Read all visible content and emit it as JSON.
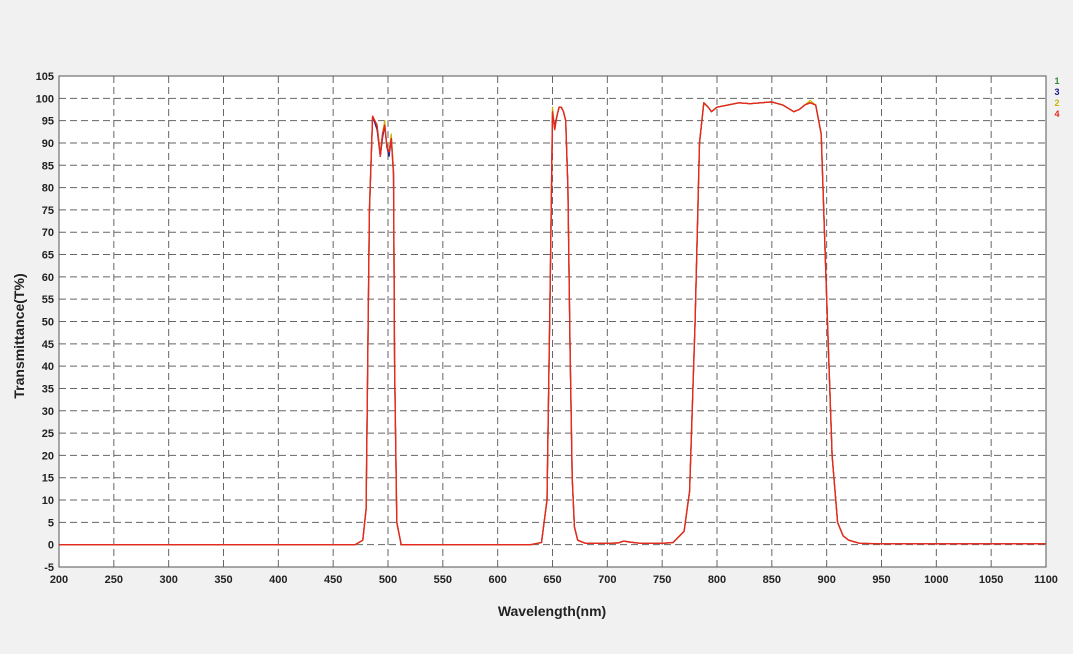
{
  "chart_data": {
    "type": "line",
    "title": "",
    "xlabel": "Wavelength(nm)",
    "ylabel": "Transmittance(T%)",
    "xlim": [
      200,
      1100
    ],
    "ylim": [
      -5,
      105
    ],
    "xticks": [
      200,
      250,
      300,
      350,
      400,
      450,
      500,
      550,
      600,
      650,
      700,
      750,
      800,
      850,
      900,
      950,
      1000,
      1050,
      1100
    ],
    "yticks": [
      -5,
      0,
      5,
      10,
      15,
      20,
      25,
      30,
      35,
      40,
      45,
      50,
      55,
      60,
      65,
      70,
      75,
      80,
      85,
      90,
      95,
      100,
      105
    ],
    "grid": "dashed",
    "legend_position": "top-right",
    "series": [
      {
        "name": "1",
        "color": "#2e8b2e",
        "x": [
          200,
          470,
          477,
          480,
          483,
          486,
          490,
          493,
          495,
          497,
          499,
          501,
          503,
          505,
          506,
          508,
          512,
          520,
          630,
          640,
          645,
          648,
          650,
          652,
          654,
          656,
          658,
          660,
          662,
          664,
          666,
          668,
          670,
          673,
          680,
          690,
          700,
          710,
          715,
          720,
          730,
          750,
          760,
          770,
          775,
          780,
          784,
          788,
          792,
          795,
          800,
          810,
          820,
          830,
          840,
          850,
          860,
          870,
          875,
          880,
          885,
          890,
          895,
          900,
          905,
          910,
          915,
          920,
          930,
          950,
          1000,
          1100
        ],
        "y": [
          0,
          0,
          1,
          8,
          75,
          96,
          94,
          87,
          92,
          94,
          89,
          88,
          91,
          83,
          40,
          5,
          0,
          0,
          0,
          0.5,
          10,
          60,
          97,
          93,
          96,
          98,
          98,
          97,
          95,
          80,
          45,
          15,
          4,
          1,
          0.3,
          0.3,
          0.3,
          0.4,
          0.8,
          0.6,
          0.3,
          0.3,
          0.5,
          3,
          12,
          50,
          90,
          99,
          98,
          97,
          98,
          98.5,
          99,
          98.8,
          99,
          99.2,
          98.5,
          97,
          97.5,
          98.5,
          99,
          98.5,
          92,
          55,
          20,
          5,
          2,
          1,
          0.3,
          0.2,
          0.2,
          0.2
        ]
      },
      {
        "name": "3",
        "color": "#1a1a8c",
        "x": [
          200,
          470,
          477,
          480,
          483,
          486,
          490,
          493,
          495,
          497,
          499,
          501,
          503,
          505,
          506,
          508,
          512,
          520,
          630,
          640,
          645,
          648,
          650,
          652,
          654,
          656,
          658,
          660,
          662,
          664,
          666,
          668,
          670,
          673,
          680,
          690,
          700,
          710,
          715,
          720,
          730,
          750,
          760,
          770,
          775,
          780,
          784,
          788,
          792,
          795,
          800,
          810,
          820,
          830,
          840,
          850,
          860,
          870,
          875,
          880,
          885,
          890,
          895,
          900,
          905,
          910,
          915,
          920,
          930,
          950,
          1000,
          1100
        ],
        "y": [
          0,
          0,
          1,
          8,
          74,
          96,
          93,
          87,
          91,
          94,
          89,
          87,
          91,
          84,
          40,
          5,
          0,
          0,
          0,
          0.5,
          10,
          59,
          96,
          94,
          96,
          98,
          98,
          97,
          95,
          80,
          45,
          15,
          4,
          1,
          0.3,
          0.3,
          0.3,
          0.4,
          0.8,
          0.6,
          0.3,
          0.3,
          0.5,
          3,
          12,
          50,
          90,
          99,
          98,
          97,
          98,
          98.5,
          99,
          98.8,
          99,
          99.2,
          98.5,
          97,
          97.5,
          98.5,
          99,
          98.5,
          92,
          55,
          20,
          5,
          2,
          1,
          0.3,
          0.2,
          0.2,
          0.2
        ]
      },
      {
        "name": "2",
        "color": "#c8b400",
        "x": [
          200,
          470,
          477,
          480,
          483,
          486,
          490,
          493,
          495,
          497,
          499,
          501,
          503,
          505,
          506,
          508,
          512,
          520,
          630,
          640,
          645,
          648,
          650,
          652,
          654,
          656,
          658,
          660,
          662,
          664,
          666,
          668,
          670,
          673,
          680,
          690,
          700,
          710,
          715,
          720,
          730,
          750,
          760,
          770,
          775,
          780,
          784,
          788,
          792,
          795,
          800,
          810,
          820,
          830,
          840,
          850,
          860,
          870,
          875,
          880,
          885,
          890,
          895,
          900,
          905,
          910,
          915,
          920,
          930,
          950,
          1000,
          1100
        ],
        "y": [
          0,
          0,
          1,
          8,
          75,
          96,
          94,
          88,
          92,
          95,
          89,
          88,
          92,
          84,
          40,
          5,
          0,
          0,
          0,
          0.5,
          10,
          60,
          98,
          93,
          96,
          98,
          98,
          97,
          95,
          80,
          45,
          15,
          4,
          1,
          0.3,
          0.3,
          0.3,
          0.4,
          0.8,
          0.6,
          0.3,
          0.3,
          0.5,
          3,
          12,
          50,
          90,
          99,
          98,
          97,
          98,
          98.5,
          99,
          98.8,
          99,
          99.2,
          98.5,
          97,
          97.5,
          98.5,
          99.5,
          98.5,
          92,
          55,
          20,
          5,
          2,
          1,
          0.3,
          0.2,
          0.2,
          0.2
        ]
      },
      {
        "name": "4",
        "color": "#e8281e",
        "x": [
          200,
          470,
          477,
          480,
          483,
          486,
          490,
          493,
          495,
          497,
          499,
          501,
          503,
          505,
          506,
          508,
          512,
          520,
          630,
          640,
          645,
          648,
          650,
          652,
          654,
          656,
          658,
          660,
          662,
          664,
          666,
          668,
          670,
          673,
          680,
          690,
          700,
          710,
          715,
          720,
          730,
          750,
          760,
          770,
          775,
          780,
          784,
          788,
          792,
          795,
          800,
          810,
          820,
          830,
          840,
          850,
          860,
          870,
          875,
          880,
          885,
          890,
          895,
          900,
          905,
          910,
          915,
          920,
          930,
          950,
          1000,
          1100
        ],
        "y": [
          0,
          0,
          1,
          8,
          75,
          96,
          94,
          87,
          92,
          94,
          89,
          88,
          91,
          83,
          40,
          5,
          0,
          0,
          0,
          0.5,
          10,
          60,
          97,
          93,
          96,
          98,
          98,
          97,
          95,
          80,
          45,
          15,
          4,
          1,
          0.3,
          0.3,
          0.3,
          0.4,
          0.8,
          0.6,
          0.3,
          0.3,
          0.5,
          3,
          12,
          50,
          90,
          99,
          98,
          97,
          98,
          98.5,
          99,
          98.8,
          99,
          99.2,
          98.5,
          97,
          97.5,
          98.5,
          99,
          98.5,
          92,
          55,
          20,
          5,
          2,
          1,
          0.3,
          0.2,
          0.2,
          0.2
        ]
      }
    ]
  }
}
